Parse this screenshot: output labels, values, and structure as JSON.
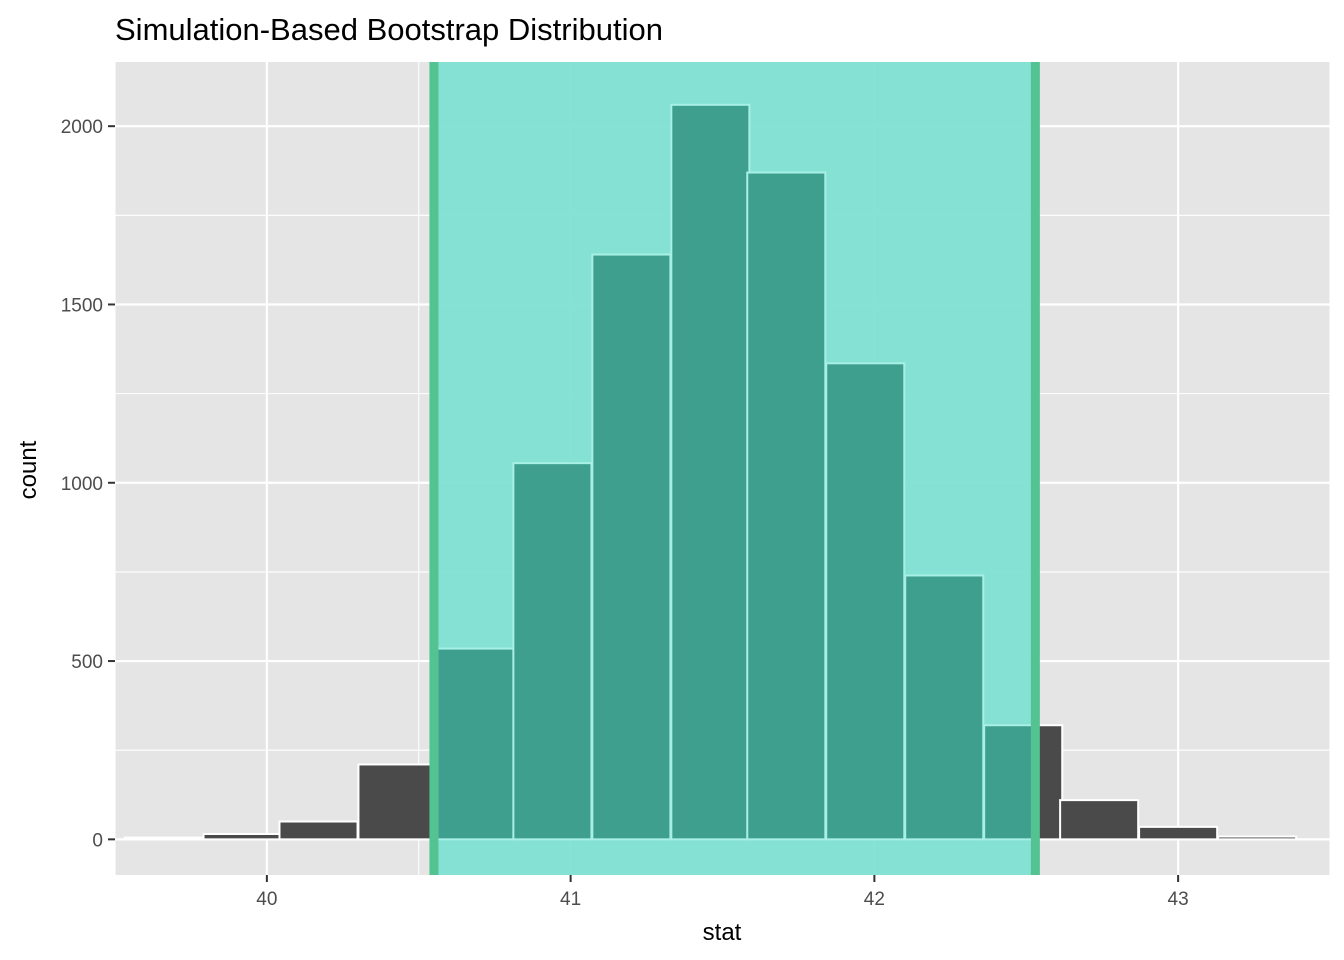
{
  "chart_data": {
    "type": "bar",
    "title": "Simulation-Based Bootstrap Distribution",
    "xlabel": "stat",
    "ylabel": "count",
    "xlim": [
      39.5,
      43.5
    ],
    "ylim": [
      -100,
      2180
    ],
    "x_ticks": [
      40,
      41,
      42,
      43
    ],
    "y_ticks": [
      0,
      500,
      1000,
      1500,
      2000
    ],
    "bin_width": 0.257,
    "bins": [
      {
        "x": 39.66,
        "count": 5
      },
      {
        "x": 39.92,
        "count": 15
      },
      {
        "x": 40.17,
        "count": 50
      },
      {
        "x": 40.43,
        "count": 210
      },
      {
        "x": 40.69,
        "count": 535
      },
      {
        "x": 40.94,
        "count": 1055
      },
      {
        "x": 41.2,
        "count": 1640
      },
      {
        "x": 41.46,
        "count": 2060
      },
      {
        "x": 41.71,
        "count": 1870
      },
      {
        "x": 41.97,
        "count": 1335
      },
      {
        "x": 42.23,
        "count": 740
      },
      {
        "x": 42.49,
        "count": 320
      },
      {
        "x": 42.74,
        "count": 110
      },
      {
        "x": 43.0,
        "count": 35
      },
      {
        "x": 43.26,
        "count": 8
      }
    ],
    "confidence_interval": {
      "lower": 40.55,
      "upper": 42.53
    },
    "colors": {
      "bar": "#4a4a4a",
      "bar_in_interval": "#3f9f8f",
      "shade": "#80e0d2",
      "interval_line": "#52c391",
      "panel": "#e5e5e5",
      "grid": "#ffffff"
    },
    "grid": true
  }
}
